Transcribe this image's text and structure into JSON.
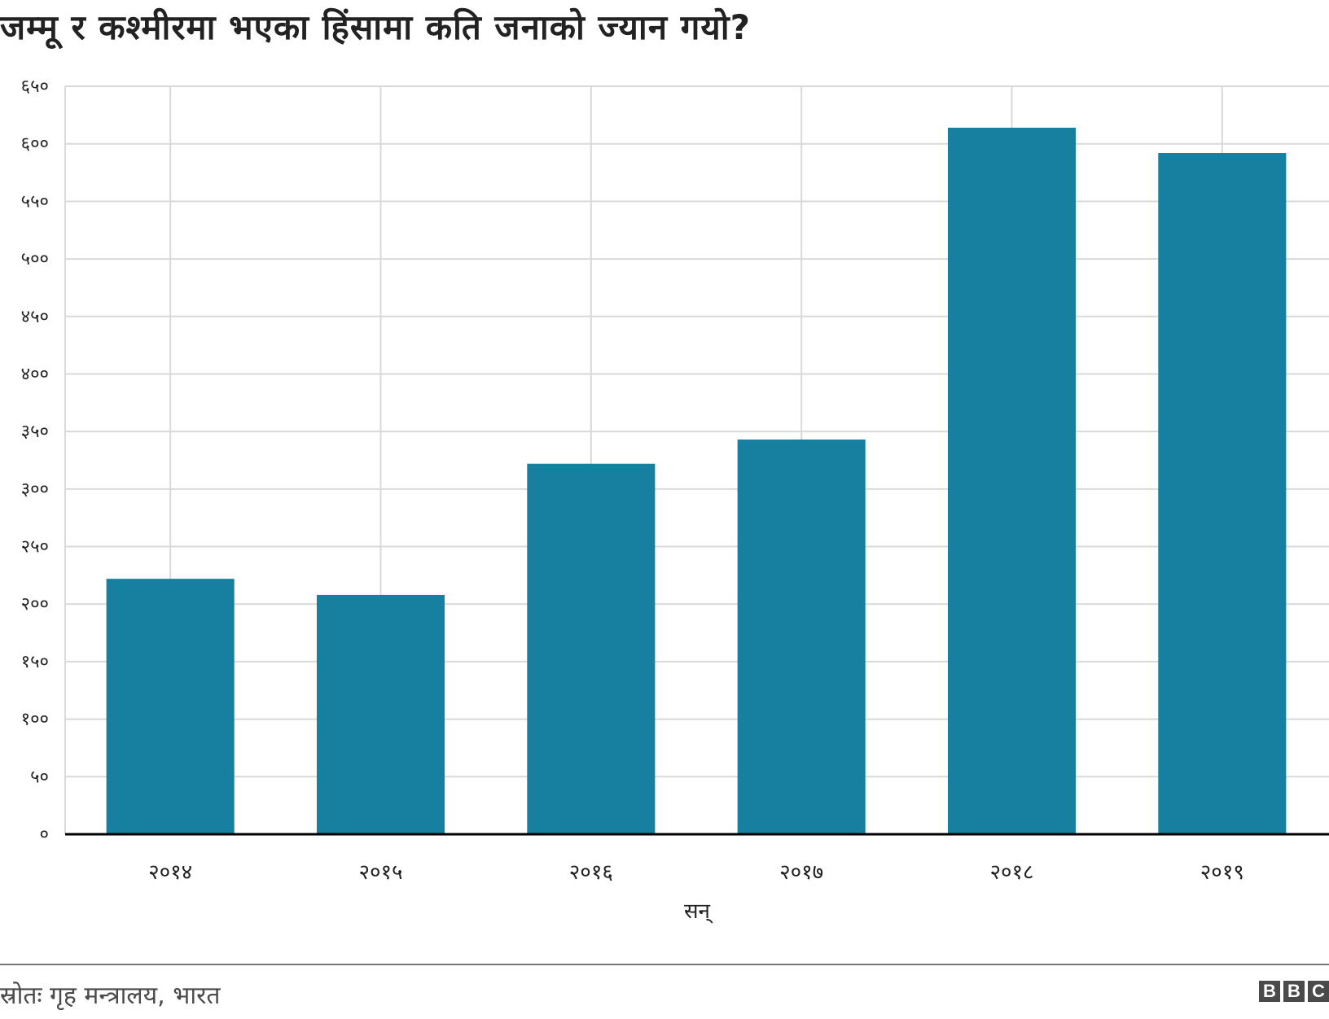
{
  "title": "जम्मू र कश्मीरमा भएका हिंसामा कति जनाको ज्यान गयो?",
  "chart_data": {
    "type": "bar",
    "categories": [
      "२०१४",
      "२०१५",
      "२०१६",
      "२०१७",
      "२०१८",
      "२०१९"
    ],
    "values": [
      222,
      208,
      322,
      343,
      614,
      592
    ],
    "xlabel": "सन्",
    "ylabel": "",
    "ylim": [
      0,
      650
    ],
    "yticks": [
      0,
      50,
      100,
      150,
      200,
      250,
      300,
      350,
      400,
      450,
      500,
      550,
      600,
      650
    ],
    "ytick_labels": [
      "०",
      "५०",
      "१००",
      "१५०",
      "२००",
      "२५०",
      "३००",
      "३५०",
      "४००",
      "४५०",
      "५००",
      "५५०",
      "६००",
      "६५०"
    ],
    "grid": true,
    "bar_color": "#1780a1"
  },
  "footer": {
    "source": "स्रोतः गृह मन्त्रालय, भारत",
    "logo_letters": [
      "B",
      "B",
      "C"
    ]
  }
}
